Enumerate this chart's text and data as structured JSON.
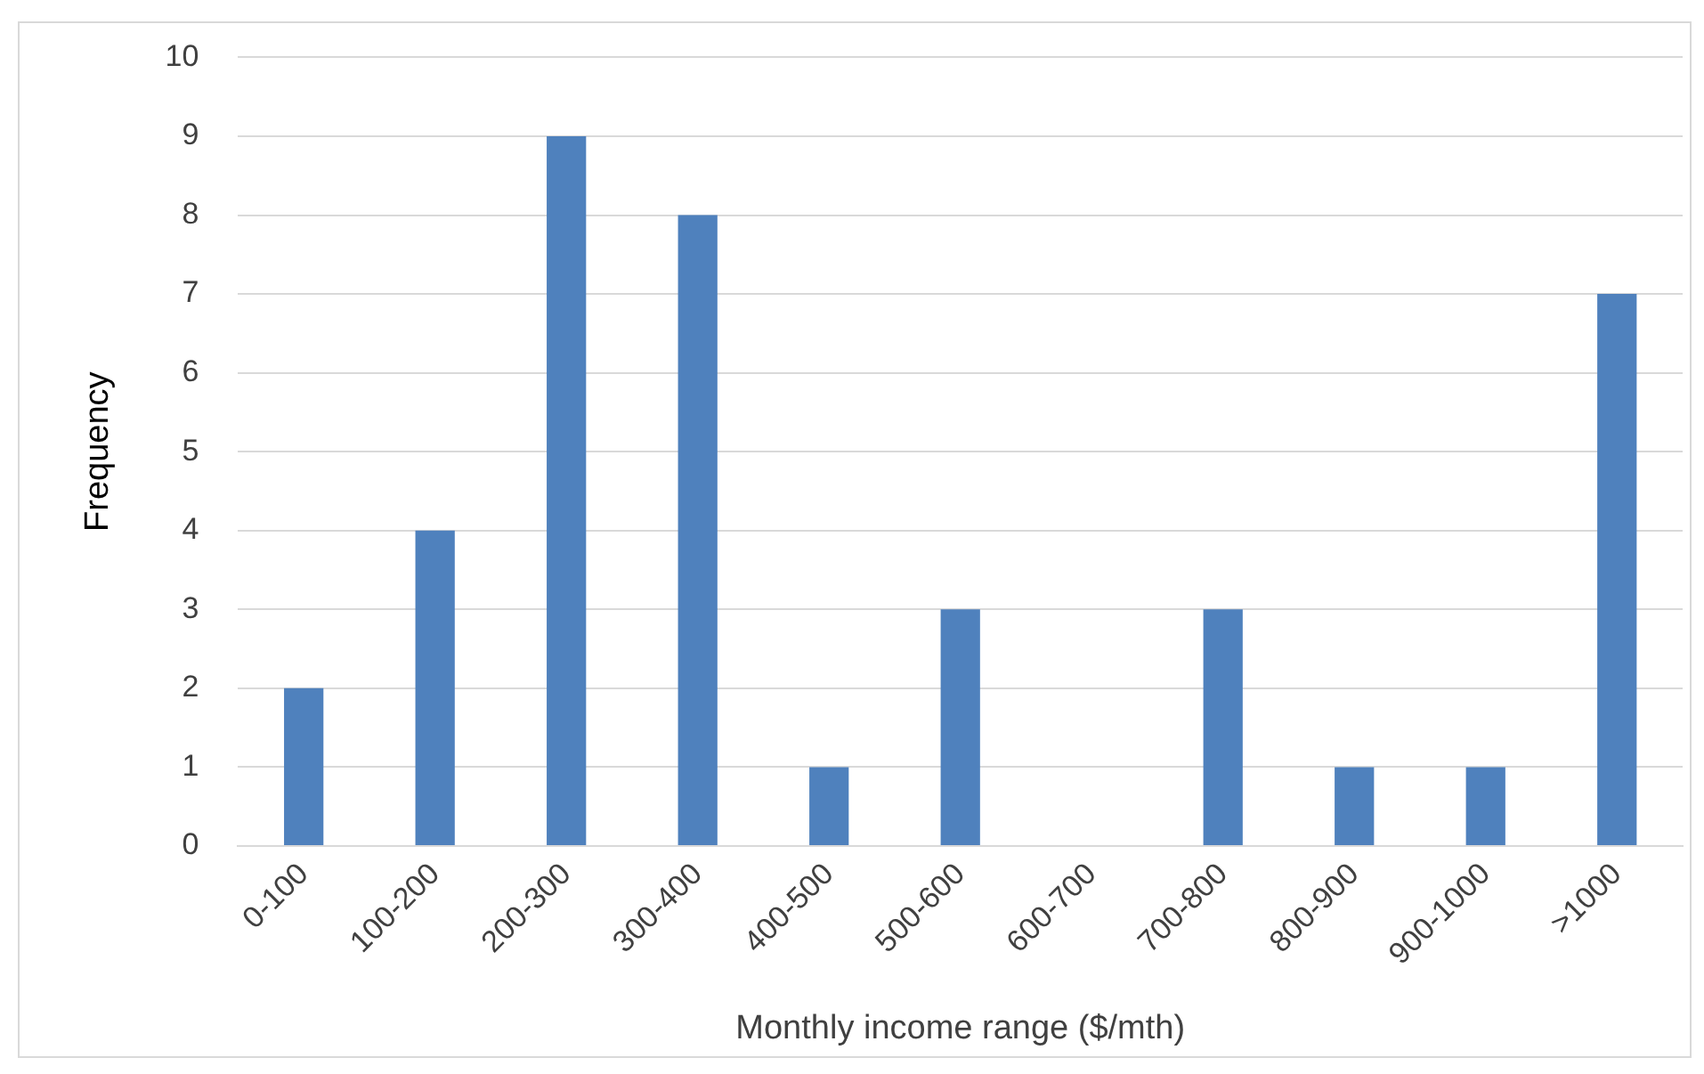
{
  "chart_data": {
    "type": "bar",
    "xlabel": "Monthly income range ($/mth)",
    "ylabel": "Frequency",
    "categories": [
      "0-100",
      "100-200",
      "200-300",
      "300-400",
      "400-500",
      "500-600",
      "600-700",
      "700-800",
      "800-900",
      "900-1000",
      ">1000"
    ],
    "values": [
      2,
      4,
      9,
      8,
      1,
      3,
      0,
      3,
      1,
      1,
      7
    ],
    "color": "#4f81bd",
    "ylim": [
      0,
      10
    ],
    "yticks": [
      0,
      1,
      2,
      3,
      4,
      5,
      6,
      7,
      8,
      9,
      10
    ],
    "grid": "y",
    "legend": false
  }
}
